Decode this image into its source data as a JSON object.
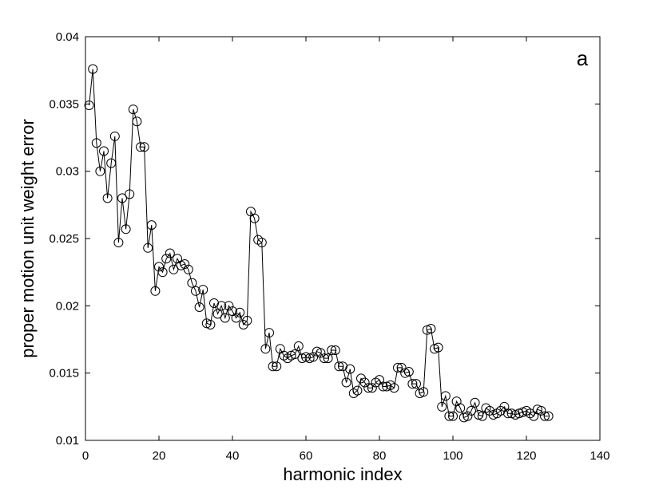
{
  "chart_data": {
    "type": "line",
    "title": "",
    "panel_label": "a",
    "xlabel": "harmonic index",
    "ylabel": "proper motion unit weight error",
    "xlim": [
      0,
      140
    ],
    "ylim": [
      0.01,
      0.04
    ],
    "xticks": [
      0,
      20,
      40,
      60,
      80,
      100,
      120,
      140
    ],
    "xtick_labels": [
      "0",
      "20",
      "40",
      "60",
      "80",
      "100",
      "120",
      "140"
    ],
    "yticks": [
      0.01,
      0.015,
      0.02,
      0.025,
      0.03,
      0.035,
      0.04
    ],
    "ytick_labels": [
      "0.01",
      "0.015",
      "0.02",
      "0.025",
      "0.03",
      "0.035",
      "0.04"
    ],
    "grid": false,
    "marker": "open-circle",
    "line_color": "#000000",
    "series": [
      {
        "x": [
          1,
          2,
          3,
          4,
          5,
          6,
          7,
          8,
          9,
          10,
          11,
          12,
          13,
          14,
          15,
          16,
          17,
          18,
          19,
          20,
          21,
          22,
          23,
          24,
          25,
          26,
          27,
          28,
          29,
          30,
          31,
          32,
          33,
          34,
          35,
          36,
          37,
          38,
          39,
          40,
          41,
          42,
          43,
          44,
          45,
          46,
          47,
          48,
          49,
          50,
          51,
          52,
          53,
          54,
          55,
          56,
          57,
          58,
          59,
          60,
          61,
          62,
          63,
          64,
          65,
          66,
          67,
          68,
          69,
          70,
          71,
          72,
          73,
          74,
          75,
          76,
          77,
          78,
          79,
          80,
          81,
          82,
          83,
          84,
          85,
          86,
          87,
          88,
          89,
          90,
          91,
          92,
          93,
          94,
          95,
          96,
          97,
          98,
          99,
          100,
          101,
          102,
          103,
          104,
          105,
          106,
          107,
          108,
          109,
          110,
          111,
          112,
          113,
          114,
          115,
          116,
          117,
          118,
          119,
          120,
          121,
          122,
          123,
          124,
          125,
          126
        ],
        "y": [
          0.0349,
          0.0376,
          0.0321,
          0.03,
          0.0315,
          0.028,
          0.0306,
          0.0326,
          0.0247,
          0.028,
          0.0257,
          0.0283,
          0.0346,
          0.0337,
          0.0318,
          0.0318,
          0.0243,
          0.026,
          0.0211,
          0.0229,
          0.0225,
          0.0235,
          0.0239,
          0.0227,
          0.0235,
          0.023,
          0.0231,
          0.0227,
          0.0217,
          0.0211,
          0.0199,
          0.0212,
          0.0187,
          0.0186,
          0.0202,
          0.0194,
          0.02,
          0.0191,
          0.02,
          0.0196,
          0.0191,
          0.0195,
          0.0186,
          0.0189,
          0.027,
          0.0265,
          0.0249,
          0.0247,
          0.0168,
          0.018,
          0.0155,
          0.0155,
          0.0168,
          0.0163,
          0.0161,
          0.0163,
          0.0164,
          0.017,
          0.0161,
          0.0162,
          0.0161,
          0.0162,
          0.0166,
          0.0165,
          0.0161,
          0.0161,
          0.0167,
          0.0167,
          0.0155,
          0.0155,
          0.0143,
          0.0153,
          0.0135,
          0.0137,
          0.0146,
          0.0143,
          0.0139,
          0.0139,
          0.0143,
          0.0145,
          0.014,
          0.014,
          0.0141,
          0.0139,
          0.0154,
          0.0154,
          0.015,
          0.0151,
          0.0142,
          0.0142,
          0.0135,
          0.0136,
          0.0182,
          0.0183,
          0.0168,
          0.0169,
          0.0125,
          0.0133,
          0.0118,
          0.0118,
          0.0129,
          0.0124,
          0.0117,
          0.0118,
          0.0122,
          0.0128,
          0.0119,
          0.0118,
          0.0124,
          0.0122,
          0.0119,
          0.012,
          0.0122,
          0.0125,
          0.012,
          0.012,
          0.0119,
          0.012,
          0.0121,
          0.0122,
          0.012,
          0.0118,
          0.0123,
          0.0122,
          0.0118,
          0.0118
        ]
      }
    ]
  }
}
